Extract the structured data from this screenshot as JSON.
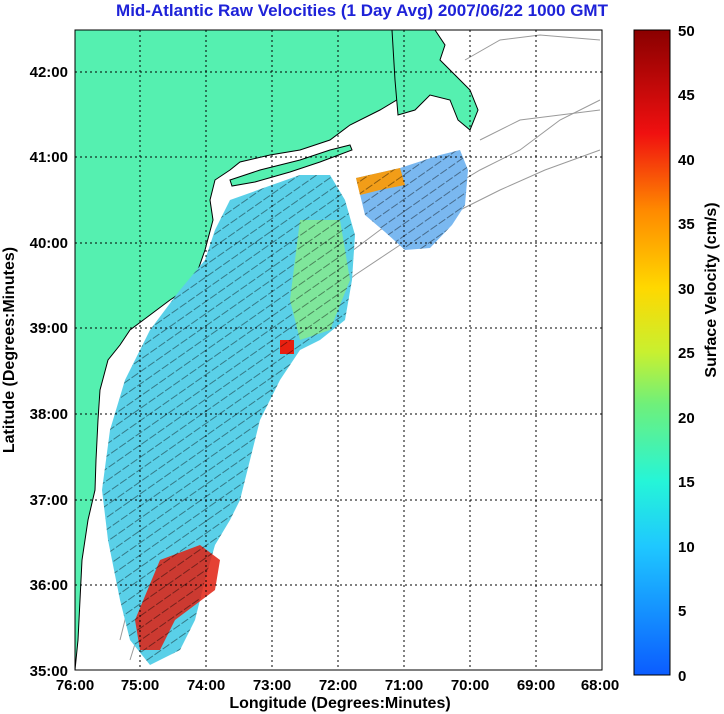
{
  "title": "Mid-Atlantic Raw Velocities (1 Day Avg) 2007/06/22 1000 GMT",
  "x_axis": {
    "label": "Longitude (Degrees:Minutes)",
    "ticks": [
      "76:00",
      "75:00",
      "74:00",
      "73:00",
      "72:00",
      "71:00",
      "70:00",
      "69:00",
      "68:00"
    ]
  },
  "y_axis": {
    "label": "Latitude (Degrees:Minutes)",
    "ticks": [
      "35:00",
      "36:00",
      "37:00",
      "38:00",
      "39:00",
      "40:00",
      "41:00",
      "42:00"
    ]
  },
  "colorbar": {
    "label": "Surface Velocity (cm/s)",
    "ticks": [
      "0",
      "5",
      "10",
      "15",
      "20",
      "25",
      "30",
      "35",
      "40",
      "45",
      "50"
    ],
    "range": [
      0,
      50
    ]
  },
  "map": {
    "land_color": "#55f0b0",
    "coastline_color": "#000000",
    "isobath_color": "#9a9a9a",
    "grid": true
  }
}
